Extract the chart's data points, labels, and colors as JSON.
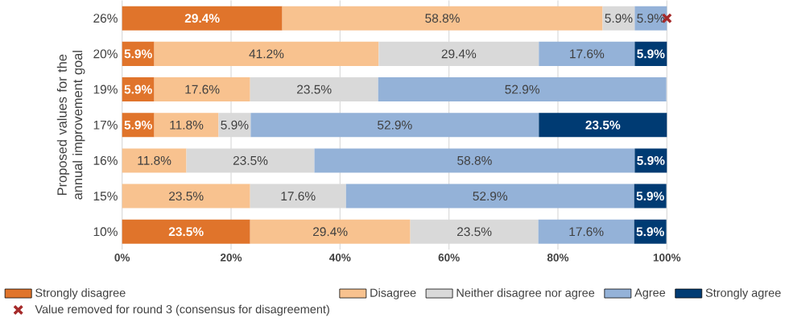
{
  "chart_data": {
    "type": "bar",
    "orientation": "horizontal",
    "stacked": true,
    "ylabel": "Proposed values for the annual improvement goal",
    "categories": [
      "26%",
      "20%",
      "19%",
      "17%",
      "16%",
      "15%",
      "10%"
    ],
    "series": [
      {
        "name": "Strongly disagree",
        "color": "#e0742b",
        "values": [
          29.4,
          5.9,
          5.9,
          5.9,
          null,
          null,
          23.5
        ],
        "value_labels": [
          "29.4%",
          "5.9%",
          "5.9%",
          "5.9%",
          null,
          null,
          "23.5%"
        ]
      },
      {
        "name": "Disagree",
        "color": "#f8c28f",
        "values": [
          58.8,
          41.2,
          17.6,
          11.8,
          11.8,
          23.5,
          29.4
        ],
        "value_labels": [
          "58.8%",
          "41.2%",
          "17.6%",
          "11.8%",
          "11.8%",
          "23.5%",
          "29.4%"
        ]
      },
      {
        "name": "Neither disagree nor agree",
        "color": "#d9d9d9",
        "values": [
          5.9,
          29.4,
          23.5,
          5.9,
          23.5,
          17.6,
          23.5
        ],
        "value_labels": [
          "5.9%",
          "29.4%",
          "23.5%",
          "5.9%",
          "23.5%",
          "17.6%",
          "23.5%"
        ]
      },
      {
        "name": "Agree",
        "color": "#94b2d8",
        "values": [
          5.9,
          17.6,
          52.9,
          52.9,
          58.8,
          52.9,
          17.6
        ],
        "value_labels": [
          "5.9%",
          "17.6%",
          "52.9%",
          "52.9%",
          "58.8%",
          "52.9%",
          "17.6%"
        ]
      },
      {
        "name": "Strongly agree",
        "color": "#003b73",
        "values": [
          null,
          5.9,
          null,
          23.5,
          5.9,
          5.9,
          5.9
        ],
        "value_labels": [
          null,
          "5.9%",
          null,
          "23.5%",
          "5.9%",
          "5.9%",
          "5.9%"
        ]
      },
      {
        "name": "Value removed for round 3 (consensus for disagreement)",
        "type": "scatter",
        "marker": "cross",
        "color": "#a52a2a",
        "values": [
          100,
          null,
          null,
          null,
          null,
          null,
          null
        ]
      }
    ],
    "xlim": [
      0,
      100
    ],
    "xticks": [
      {
        "value": 0,
        "label": "0%"
      },
      {
        "value": 20,
        "label": "20%"
      },
      {
        "value": 40,
        "label": "40%"
      },
      {
        "value": 60,
        "label": "60%"
      },
      {
        "value": 80,
        "label": "80%"
      },
      {
        "value": 100,
        "label": "100%"
      }
    ],
    "grid": "x",
    "legend": "bottom"
  }
}
